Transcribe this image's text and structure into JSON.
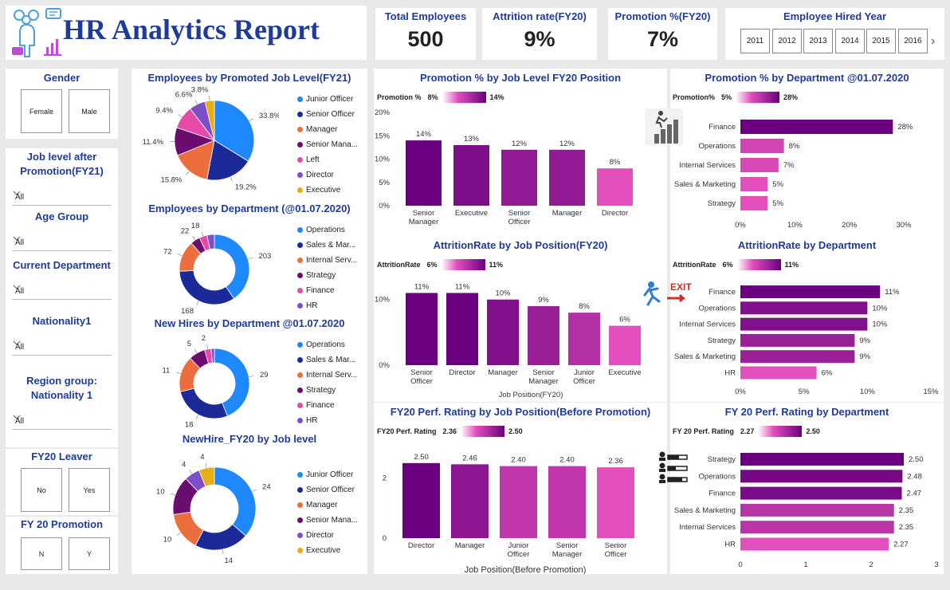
{
  "header": {
    "title": "HR Analytics Report"
  },
  "kpis": {
    "total_employees": {
      "label": "Total Employees",
      "value": "500"
    },
    "attrition": {
      "label": "Attrition rate(FY20)",
      "value": "9%"
    },
    "promotion": {
      "label": "Promotion %(FY20)",
      "value": "7%"
    }
  },
  "hired_year": {
    "label": "Employee Hired Year",
    "years": [
      "2011",
      "2012",
      "2013",
      "2014",
      "2015",
      "2016"
    ],
    "next": "›"
  },
  "slicers": {
    "gender": {
      "title": "Gender",
      "options": [
        "Female",
        "Male"
      ]
    },
    "job_level": {
      "title_line1": "Job level after",
      "title_line2": "Promotion(FY21)",
      "value": "All"
    },
    "age_group": {
      "title": "Age Group",
      "value": "All"
    },
    "department": {
      "title": "Current Department",
      "value": "All"
    },
    "nationality": {
      "title": "Nationality1",
      "value": "All"
    },
    "region": {
      "title_line1": "Region group:",
      "title_line2": "Nationality 1",
      "value": "All"
    },
    "leaver": {
      "title": "FY20 Leaver",
      "options": [
        "No",
        "Yes"
      ]
    },
    "promotion": {
      "title": "FY 20 Promotion",
      "options": [
        "N",
        "Y"
      ]
    }
  },
  "donuts": {
    "promoted": {
      "title": "Employees by Promoted Job Level(FY21)",
      "legend": [
        "Junior Officer",
        "Senior Officer",
        "Manager",
        "Senior Mana...",
        "Left",
        "Director",
        "Executive"
      ],
      "labels": [
        "33.8%",
        "19.2%",
        "15.8%",
        "11.4%",
        "9.4%",
        "6.6%",
        "3.8%"
      ]
    },
    "dept": {
      "title": "Employees by Department (@01.07.2020)",
      "legend": [
        "Operations",
        "Sales & Mar...",
        "Internal Serv...",
        "Strategy",
        "Finance",
        "HR"
      ],
      "labels": [
        "203",
        "168",
        "72",
        "22",
        "18"
      ]
    },
    "hires_dept": {
      "title": "New Hires by Department @01.07.2020",
      "legend": [
        "Operations",
        "Sales & Mar...",
        "Internal Serv...",
        "Strategy",
        "Finance",
        "HR"
      ],
      "labels": [
        "29",
        "18",
        "11",
        "5",
        "2"
      ]
    },
    "hires_level": {
      "title": "NewHire_FY20 by Job level",
      "legend": [
        "Junior Officer",
        "Senior Officer",
        "Manager",
        "Senior Mana...",
        "Director",
        "Executive"
      ],
      "labels": [
        "24",
        "14",
        "10",
        "10",
        "4",
        "4"
      ]
    }
  },
  "colors": {
    "series": [
      "#1e88ff",
      "#1c2a99",
      "#ec6e3c",
      "#6b0d6e",
      "#e64aa9",
      "#7c4fc9",
      "#e6b012"
    ],
    "dept": [
      "#1e88ff",
      "#1c2a99",
      "#ec6e3c",
      "#6b0d6e",
      "#e64aa9",
      "#7c4fc9"
    ],
    "grad_dark": "#6a0080",
    "grad_light": "#e34fbc",
    "title_blue": "#1f3b99"
  },
  "chart_data": [
    {
      "type": "pie",
      "title": "Employees by Promoted Job Level(FY21)",
      "categories": [
        "Junior Officer",
        "Senior Officer",
        "Manager",
        "Senior Mana...",
        "Left",
        "Director",
        "Executive"
      ],
      "values": [
        33.8,
        19.2,
        15.8,
        11.4,
        9.4,
        6.6,
        3.8
      ]
    },
    {
      "type": "pie",
      "title": "Employees by Department (@01.07.2020)",
      "categories": [
        "Operations",
        "Sales & Mar...",
        "Internal Serv...",
        "Strategy",
        "Finance",
        "HR"
      ],
      "values": [
        203,
        168,
        72,
        22,
        18,
        17
      ]
    },
    {
      "type": "pie",
      "title": "New Hires by Department @01.07.2020",
      "categories": [
        "Operations",
        "Sales & Mar...",
        "Internal Serv...",
        "Strategy",
        "Finance",
        "HR"
      ],
      "values": [
        29,
        18,
        11,
        5,
        2,
        1
      ]
    },
    {
      "type": "pie",
      "title": "NewHire_FY20 by Job level",
      "categories": [
        "Junior Officer",
        "Senior Officer",
        "Manager",
        "Senior Mana...",
        "Director",
        "Executive"
      ],
      "values": [
        24,
        14,
        10,
        10,
        4,
        4
      ]
    },
    {
      "type": "bar",
      "title": "Promotion % by Job Level FY20 Position",
      "categories": [
        "Senior Manager",
        "Executive",
        "Senior Officer",
        "Manager",
        "Director"
      ],
      "values": [
        14,
        13,
        12,
        12,
        8
      ],
      "value_labels": [
        "14%",
        "13%",
        "12%",
        "12%",
        "8%"
      ],
      "yticks": [
        "20%",
        "15%",
        "10%",
        "5%",
        "0%"
      ],
      "ylim": [
        0,
        20
      ],
      "legend_title": "Promotion %",
      "legend_min": "8%",
      "legend_max": "14%"
    },
    {
      "type": "bar",
      "title": "AttritionRate by Job Position(FY20)",
      "categories": [
        "Senior Officer",
        "Director",
        "Manager",
        "Senior Manager",
        "Junior Officer",
        "Executive"
      ],
      "values": [
        11,
        11,
        10,
        9,
        8,
        6
      ],
      "value_labels": [
        "11%",
        "11%",
        "10%",
        "9%",
        "8%",
        "6%"
      ],
      "yticks": [
        "10%",
        "0%"
      ],
      "ylim": [
        0,
        13
      ],
      "xlabel": "Job Position(FY20)",
      "legend_title": "AttritionRate",
      "legend_min": "6%",
      "legend_max": "11%"
    },
    {
      "type": "bar",
      "title": "FY20 Perf. Rating by Job Position(Before Promotion)",
      "categories": [
        "Director",
        "Manager",
        "Junior Officer",
        "Senior Manager",
        "Senior Officer"
      ],
      "values": [
        2.5,
        2.46,
        2.4,
        2.4,
        2.36
      ],
      "value_labels": [
        "2.50",
        "2.46",
        "2.40",
        "2.40",
        "2.36"
      ],
      "yticks": [
        "2",
        "0"
      ],
      "ylim": [
        0,
        3
      ],
      "xlabel": "Job Position(Before Promotion)",
      "legend_title": "FY20 Perf. Rating",
      "legend_min": "2.36",
      "legend_max": "2.50"
    },
    {
      "type": "bar",
      "orientation": "horizontal",
      "title": "Promotion % by Department @01.07.2020",
      "categories": [
        "Finance",
        "Operations",
        "Internal Services",
        "Sales & Marketing",
        "Strategy"
      ],
      "values": [
        28,
        8,
        7,
        5,
        5
      ],
      "value_labels": [
        "28%",
        "8%",
        "7%",
        "5%",
        "5%"
      ],
      "xticks": [
        "0%",
        "10%",
        "20%",
        "30%"
      ],
      "xlim": [
        0,
        30
      ],
      "legend_title": "Promotion%",
      "legend_min": "5%",
      "legend_max": "28%"
    },
    {
      "type": "bar",
      "orientation": "horizontal",
      "title": "AttritionRate by Department",
      "categories": [
        "Finance",
        "Operations",
        "Internal Services",
        "Strategy",
        "Sales & Marketing",
        "HR"
      ],
      "values": [
        11,
        10,
        10,
        9,
        9,
        6
      ],
      "value_labels": [
        "11%",
        "10%",
        "10%",
        "9%",
        "9%",
        "6%"
      ],
      "xticks": [
        "0%",
        "5%",
        "10%",
        "15%"
      ],
      "xlim": [
        0,
        15
      ],
      "legend_title": "AttritionRate",
      "legend_min": "6%",
      "legend_max": "11%"
    },
    {
      "type": "bar",
      "orientation": "horizontal",
      "title": "FY 20 Perf. Rating by Department",
      "categories": [
        "Strategy",
        "Operations",
        "Finance",
        "Sales & Marketing",
        "Internal Services",
        "HR"
      ],
      "values": [
        2.5,
        2.48,
        2.47,
        2.35,
        2.35,
        2.27
      ],
      "value_labels": [
        "2.50",
        "2.48",
        "2.47",
        "2.35",
        "2.35",
        "2.27"
      ],
      "xticks": [
        "0",
        "1",
        "2",
        "3"
      ],
      "xlim": [
        0,
        3
      ],
      "legend_title": "FY 20 Perf. Rating",
      "legend_min": "2.27",
      "legend_max": "2.50"
    }
  ]
}
